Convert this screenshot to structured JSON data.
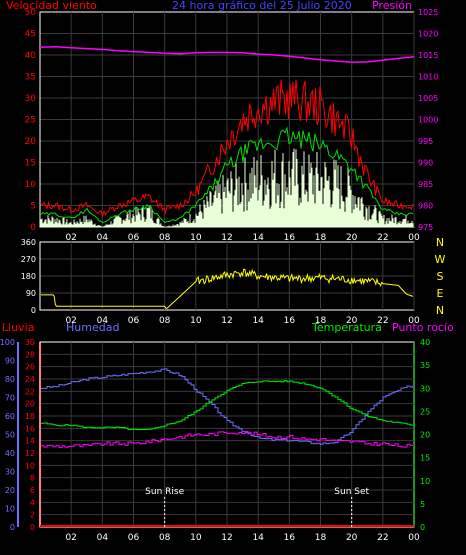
{
  "colors": {
    "wind": "#ff0000",
    "gust": "#ff0000",
    "avg_wind": "#00dd00",
    "light": "#e8ffd8",
    "pressure": "#ff00ff",
    "direction": "#ffff00",
    "humidity": "#6f6fff",
    "temperature": "#00ee00",
    "dewpoint": "#ff00ff",
    "rain": "#ff0000",
    "frame": "#ffffff",
    "grid": "#3a3a3a",
    "bg": "#000000"
  },
  "chart_data": [
    {
      "type": "line",
      "title": "24 hora gráfico del   25 Julio 2020",
      "left_label": "Velocidad viento",
      "right_label": "Presión",
      "x_ticks": [
        "02",
        "04",
        "06",
        "08",
        "10",
        "12",
        "14",
        "16",
        "18",
        "20",
        "22",
        "00"
      ],
      "y_left": {
        "min": 0,
        "max": 50,
        "ticks": [
          "0",
          "5",
          "10",
          "15",
          "20",
          "25",
          "30",
          "35",
          "40",
          "45",
          "50"
        ]
      },
      "y_right": {
        "min": 975,
        "max": 1025,
        "ticks": [
          "975",
          "980",
          "985",
          "990",
          "995",
          "1000",
          "1005",
          "1010",
          "1015",
          "1020",
          "1025"
        ]
      },
      "hours": [
        0,
        1,
        2,
        3,
        4,
        5,
        6,
        7,
        8,
        9,
        10,
        11,
        12,
        13,
        14,
        15,
        16,
        17,
        18,
        19,
        20,
        21,
        22,
        23,
        24
      ],
      "wind_gust": [
        5,
        5,
        4,
        5,
        3,
        5,
        6,
        7,
        4,
        5,
        8,
        14,
        20,
        25,
        28,
        29,
        30,
        29,
        28,
        25,
        21,
        12,
        6,
        5,
        5
      ],
      "wind_avg": [
        3,
        3,
        2,
        4,
        1,
        3,
        4,
        5,
        1,
        2,
        5,
        9,
        14,
        17,
        19,
        20,
        21,
        20,
        19,
        17,
        14,
        9,
        4,
        3,
        3
      ],
      "wind_speed": [
        2,
        2,
        1,
        2,
        0,
        2,
        3,
        4,
        0,
        1,
        3,
        6,
        9,
        11,
        12,
        13,
        13,
        12,
        12,
        11,
        9,
        5,
        2,
        2,
        2
      ],
      "pressure": [
        1016.8,
        1016.9,
        1016.7,
        1016.5,
        1016.3,
        1016.0,
        1015.8,
        1015.6,
        1015.4,
        1015.3,
        1015.5,
        1015.6,
        1015.6,
        1015.5,
        1015.2,
        1015.0,
        1014.7,
        1014.3,
        1013.9,
        1013.6,
        1013.3,
        1013.4,
        1013.8,
        1014.2,
        1014.6
      ]
    },
    {
      "type": "line",
      "y_left": {
        "min": 0,
        "max": 360,
        "ticks": [
          "0",
          "90",
          "180",
          "270",
          "360"
        ]
      },
      "cardinal": [
        "N",
        "W",
        "S",
        "E",
        "N"
      ],
      "x_ticks": [
        "02",
        "04",
        "06",
        "08",
        "10",
        "12",
        "14",
        "16",
        "18",
        "20",
        "22",
        "00"
      ],
      "hours": [
        0,
        0.9,
        1.0,
        8.0,
        8.1,
        10.0,
        12.0,
        13.0,
        14.0,
        16.0,
        18.0,
        20.0,
        21.0,
        22.0,
        23.0,
        23.5,
        24
      ],
      "direction": [
        80,
        80,
        20,
        20,
        5,
        150,
        185,
        200,
        180,
        165,
        170,
        160,
        150,
        140,
        130,
        85,
        70
      ]
    },
    {
      "type": "line",
      "left_labels": [
        "Lluvia",
        "Humedad"
      ],
      "right_labels": [
        "Temperatura",
        "Punto rocío"
      ],
      "rain_axis": {
        "min": 0,
        "max": 30,
        "ticks": [
          "0",
          "2",
          "4",
          "6",
          "8",
          "10",
          "12",
          "14",
          "16",
          "18",
          "20",
          "22",
          "24",
          "26",
          "28",
          "30"
        ]
      },
      "humidity_axis": {
        "min": 0,
        "max": 100,
        "ticks": [
          "0",
          "10",
          "20",
          "30",
          "40",
          "50",
          "60",
          "70",
          "80",
          "90",
          "100"
        ]
      },
      "temp_axis": {
        "min": 0,
        "max": 40,
        "ticks": [
          "0",
          "5",
          "10",
          "15",
          "20",
          "25",
          "30",
          "35",
          "40"
        ]
      },
      "x_ticks": [
        "02",
        "04",
        "06",
        "08",
        "10",
        "12",
        "14",
        "16",
        "18",
        "20",
        "22",
        "00"
      ],
      "hours": [
        0,
        1,
        2,
        3,
        4,
        5,
        6,
        7,
        8,
        9,
        10,
        11,
        12,
        13,
        14,
        15,
        16,
        17,
        18,
        19,
        20,
        21,
        22,
        23,
        24
      ],
      "humidity": [
        75,
        76,
        78,
        80,
        81,
        82,
        83,
        84,
        85,
        82,
        74,
        66,
        57,
        52,
        48,
        47,
        47,
        46,
        45,
        46,
        52,
        62,
        70,
        74,
        77
      ],
      "temperature": [
        22.5,
        22.0,
        22.0,
        21.5,
        21.5,
        21.5,
        21.0,
        21.0,
        22.0,
        23.0,
        25.0,
        27.5,
        29.5,
        31.0,
        31.5,
        31.5,
        31.5,
        31.0,
        30.0,
        28.0,
        25.5,
        24.0,
        23.0,
        22.5,
        22.0
      ],
      "dewpoint": [
        17.5,
        17.5,
        17.5,
        17.5,
        18.0,
        18.0,
        18.0,
        18.5,
        19.0,
        19.5,
        20.0,
        20.0,
        20.5,
        20.5,
        20.0,
        19.5,
        19.5,
        19.0,
        19.0,
        18.5,
        18.5,
        18.0,
        18.0,
        17.5,
        17.5
      ],
      "rain": [
        0,
        0,
        0,
        0,
        0,
        0,
        0,
        0,
        0,
        0,
        0,
        0,
        0,
        0,
        0,
        0,
        0,
        0,
        0,
        0,
        0,
        0,
        0,
        0,
        0
      ],
      "markers": [
        {
          "label": "Sun Rise",
          "hour": 8.0
        },
        {
          "label": "Sun Set",
          "hour": 20.0
        }
      ]
    }
  ]
}
